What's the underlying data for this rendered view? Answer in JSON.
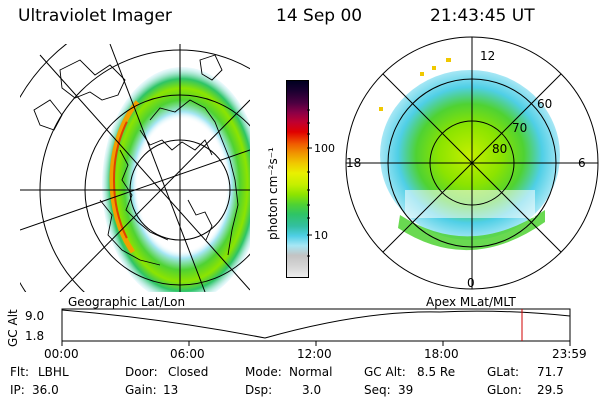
{
  "header": {
    "instrument": "Ultraviolet Imager",
    "date": "14 Sep 00",
    "time": "21:43:45 UT"
  },
  "left_map": {
    "caption": "Geographic Lat/Lon"
  },
  "right_map": {
    "caption": "Apex MLat/MLT",
    "lat_labels": [
      "60",
      "70",
      "80"
    ],
    "mlt_labels": {
      "top": "12",
      "left": "18",
      "right": "6",
      "bottom": "0"
    }
  },
  "colorbar": {
    "label": "photon cm⁻²s⁻¹",
    "ticks": [
      "100",
      "10"
    ],
    "colors": [
      "#eeeeee",
      "#d7d7d7",
      "#c3c3c3",
      "#a7e7f5",
      "#4fcfe6",
      "#33bfa0",
      "#2ec466",
      "#4fd233",
      "#8ce400",
      "#c4ef00",
      "#e9f000",
      "#f0c800",
      "#f09600",
      "#f05a00",
      "#e00000",
      "#c00030",
      "#8a0047",
      "#4a0040",
      "#1a0030",
      "#000020"
    ]
  },
  "altitude_plot": {
    "ylabel": "GC Alt",
    "y_ticks": [
      "9.0",
      "1.8"
    ],
    "x_ticks": [
      "00:00",
      "06:00",
      "12:00",
      "18:00",
      "23:59"
    ],
    "cursor_color": "#d00000"
  },
  "status": {
    "flt_label": "Flt:",
    "flt_value": "LBHL",
    "ip_label": "IP:",
    "ip_value": "36.0",
    "door_label": "Door:",
    "door_value": "Closed",
    "gain_label": "Gain:",
    "gain_value": "13",
    "mode_label": "Mode:",
    "mode_value": "Normal",
    "dsp_label": "Dsp:",
    "dsp_value": "3.0",
    "gcalt_label": "GC Alt:",
    "gcalt_value": "8.5 Re",
    "seq_label": "Seq:",
    "seq_value": "39",
    "glat_label": "GLat:",
    "glat_value": "71.7",
    "glon_label": "GLon:",
    "glon_value": "29.5"
  }
}
